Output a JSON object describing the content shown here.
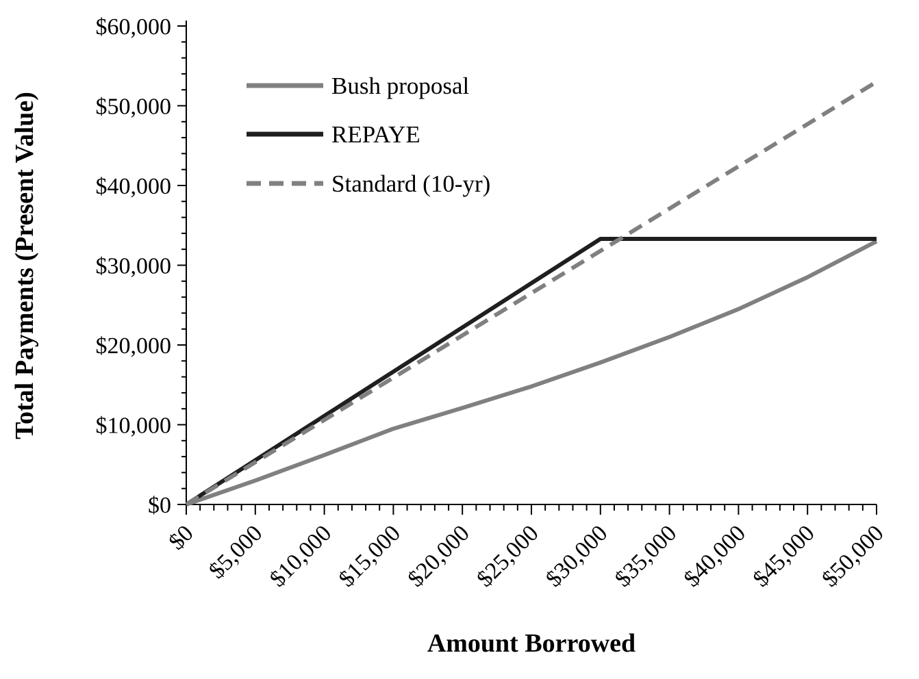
{
  "chart_data": {
    "type": "line",
    "title": "",
    "xlabel": "Amount Borrowed",
    "ylabel": "Total Payments (Present Value)",
    "x": [
      0,
      5000,
      10000,
      15000,
      20000,
      25000,
      30000,
      35000,
      40000,
      45000,
      50000
    ],
    "series": [
      {
        "name": "Bush proposal",
        "color": "#808080",
        "style": "solid",
        "values": [
          0,
          3000,
          6200,
          9500,
          12100,
          14800,
          17800,
          21000,
          24500,
          28500,
          33000
        ]
      },
      {
        "name": "REPAYE",
        "color": "#1f1f1f",
        "style": "solid",
        "values": [
          0,
          5550,
          11100,
          16650,
          22200,
          27750,
          33300,
          33300,
          33300,
          33300,
          33300
        ]
      },
      {
        "name": "Standard (10-yr)",
        "color": "#808080",
        "style": "dashed",
        "values": [
          0,
          5300,
          10600,
          15900,
          21200,
          26500,
          31800,
          37100,
          42400,
          47700,
          53000
        ]
      }
    ],
    "xlim": [
      0,
      50000
    ],
    "ylim": [
      0,
      60000
    ],
    "x_tick_step": 5000,
    "y_tick_step": 10000,
    "x_minor_step": 1000,
    "y_minor_step": 2000,
    "grid": false,
    "legend_position": "upper-left-inside",
    "x_tick_labels": [
      "$0",
      "$5,000",
      "$10,000",
      "$15,000",
      "$20,000",
      "$25,000",
      "$30,000",
      "$35,000",
      "$40,000",
      "$45,000",
      "$50,000"
    ],
    "y_tick_labels": [
      "$0",
      "$10,000",
      "$20,000",
      "$30,000",
      "$40,000",
      "$50,000",
      "$60,000"
    ]
  }
}
